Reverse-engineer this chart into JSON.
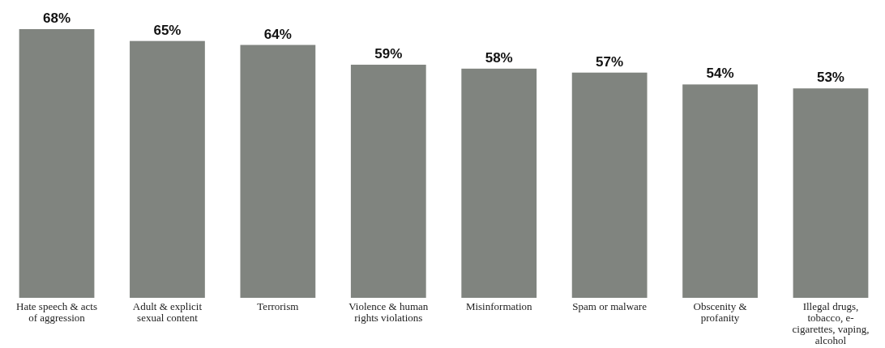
{
  "chart_data": {
    "type": "bar",
    "categories": [
      "Hate speech & acts of aggression",
      "Adult & explicit sexual content",
      "Terrorism",
      "Violence & human rights violations",
      "Misinformation",
      "Spam or malware",
      "Obscenity & profanity",
      "Illegal drugs, tobacco, e-cigarettes, vaping, alcohol"
    ],
    "values": [
      68,
      65,
      64,
      59,
      58,
      57,
      54,
      53
    ],
    "color": "#80847f",
    "value_labels": [
      "68%",
      "65%",
      "64%",
      "59%",
      "58%",
      "57%",
      "54%",
      "53%"
    ]
  }
}
